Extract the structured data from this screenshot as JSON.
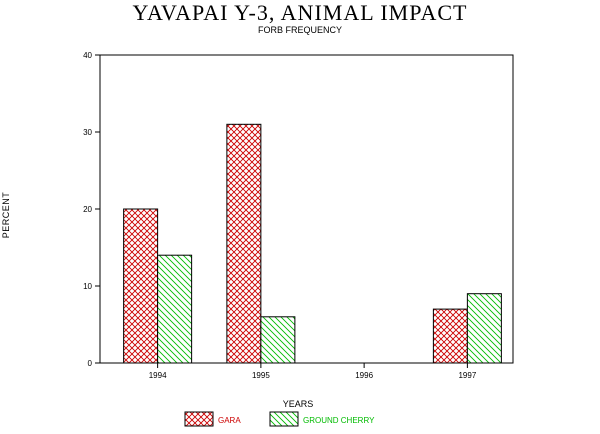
{
  "chart_data": {
    "type": "bar",
    "title": "YAVAPAI Y-3, ANIMAL IMPACT",
    "subtitle": "FORB FREQUENCY",
    "xlabel": "YEARS",
    "ylabel": "PERCENT",
    "categories": [
      "1994",
      "1995",
      "1996",
      "1997"
    ],
    "ylim": [
      0,
      40
    ],
    "yticks": [
      0,
      10,
      20,
      30,
      40
    ],
    "grid": false,
    "legend_position": "bottom",
    "series": [
      {
        "name": "GARA",
        "values": [
          20,
          31,
          null,
          7
        ],
        "color": "#cc0000",
        "pattern": "crosshatch"
      },
      {
        "name": "GROUND CHERRY",
        "values": [
          14,
          6,
          null,
          9
        ],
        "color": "#00bb00",
        "pattern": "diagonal"
      }
    ]
  }
}
